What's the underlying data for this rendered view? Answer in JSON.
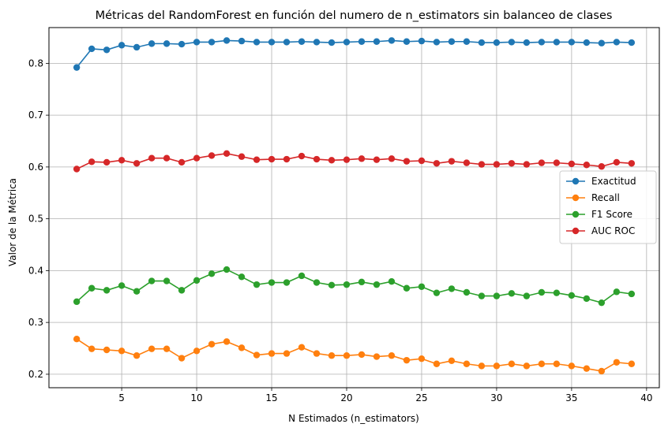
{
  "chart_data": {
    "type": "line",
    "title": "Métricas del RandomForest en función del numero de n_estimators sin balanceo de clases",
    "xlabel": "N Estimados (n_estimators)",
    "ylabel": "Valor de la Métrica",
    "xlim": [
      0.15,
      40.85
    ],
    "ylim": [
      0.174,
      0.869
    ],
    "xticks": [
      5,
      10,
      15,
      20,
      25,
      30,
      35,
      40
    ],
    "xtick_labels": [
      "5",
      "10",
      "15",
      "20",
      "25",
      "30",
      "35",
      "40"
    ],
    "yticks": [
      0.2,
      0.3,
      0.4,
      0.5,
      0.6,
      0.7,
      0.8
    ],
    "ytick_labels": [
      "0.2",
      "0.3",
      "0.4",
      "0.5",
      "0.6",
      "0.7",
      "0.8"
    ],
    "grid": true,
    "legend_position": "center-right",
    "x": [
      2,
      3,
      4,
      5,
      6,
      7,
      8,
      9,
      10,
      11,
      12,
      13,
      14,
      15,
      16,
      17,
      18,
      19,
      20,
      21,
      22,
      23,
      24,
      25,
      26,
      27,
      28,
      29,
      30,
      31,
      32,
      33,
      34,
      35,
      36,
      37,
      38,
      39
    ],
    "series": [
      {
        "name": "Exactitud",
        "color": "#1f77b4",
        "values": [
          0.792,
          0.828,
          0.826,
          0.835,
          0.831,
          0.838,
          0.838,
          0.837,
          0.841,
          0.841,
          0.844,
          0.843,
          0.841,
          0.841,
          0.841,
          0.842,
          0.841,
          0.84,
          0.841,
          0.842,
          0.842,
          0.844,
          0.842,
          0.843,
          0.841,
          0.842,
          0.842,
          0.84,
          0.84,
          0.841,
          0.84,
          0.841,
          0.841,
          0.841,
          0.84,
          0.839,
          0.841,
          0.84
        ]
      },
      {
        "name": "Recall",
        "color": "#ff7f0e",
        "values": [
          0.268,
          0.249,
          0.247,
          0.245,
          0.236,
          0.249,
          0.249,
          0.231,
          0.245,
          0.258,
          0.263,
          0.251,
          0.237,
          0.24,
          0.24,
          0.252,
          0.24,
          0.236,
          0.236,
          0.238,
          0.234,
          0.236,
          0.227,
          0.23,
          0.22,
          0.226,
          0.22,
          0.216,
          0.216,
          0.22,
          0.216,
          0.22,
          0.22,
          0.216,
          0.211,
          0.206,
          0.223,
          0.22
        ]
      },
      {
        "name": "F1 Score",
        "color": "#2ca02c",
        "values": [
          0.34,
          0.366,
          0.362,
          0.371,
          0.36,
          0.38,
          0.38,
          0.362,
          0.381,
          0.394,
          0.402,
          0.388,
          0.373,
          0.377,
          0.377,
          0.39,
          0.377,
          0.372,
          0.373,
          0.378,
          0.373,
          0.379,
          0.366,
          0.369,
          0.357,
          0.365,
          0.358,
          0.351,
          0.351,
          0.356,
          0.351,
          0.358,
          0.357,
          0.352,
          0.346,
          0.338,
          0.359,
          0.355
        ]
      },
      {
        "name": "AUC ROC",
        "color": "#d62728",
        "values": [
          0.596,
          0.61,
          0.609,
          0.613,
          0.607,
          0.617,
          0.617,
          0.609,
          0.617,
          0.622,
          0.626,
          0.62,
          0.614,
          0.615,
          0.615,
          0.621,
          0.615,
          0.613,
          0.614,
          0.616,
          0.614,
          0.616,
          0.611,
          0.612,
          0.607,
          0.611,
          0.608,
          0.605,
          0.605,
          0.607,
          0.605,
          0.608,
          0.608,
          0.606,
          0.604,
          0.601,
          0.609,
          0.607
        ]
      }
    ]
  }
}
